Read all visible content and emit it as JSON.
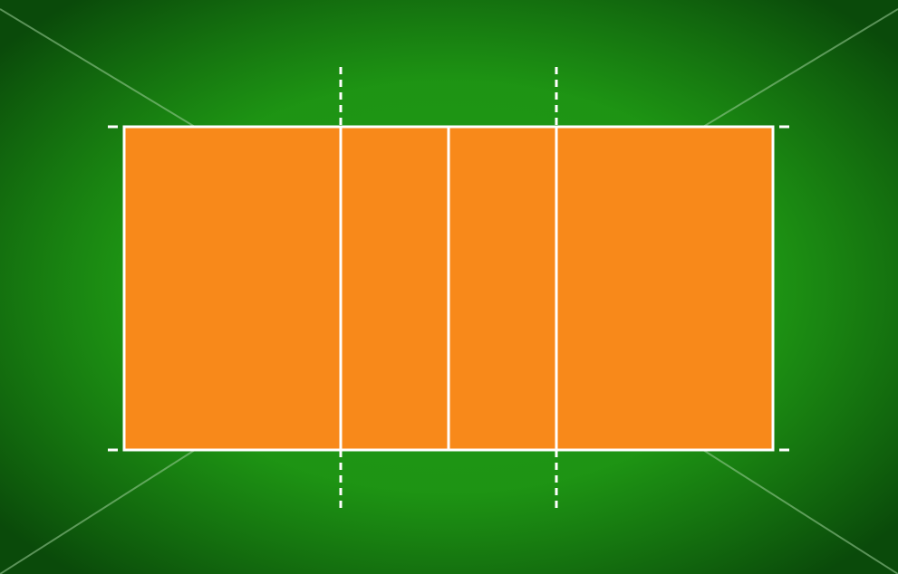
{
  "colors": {
    "surround_center": "#1f9a14",
    "surround_edge": "#0a4a0a",
    "court_fill": "#f8891a",
    "line": "#ffffff",
    "perspective_line": "#9fcf9a"
  },
  "icons": {
    "court": "volleyball-court-icon"
  },
  "court": {
    "zones": 4,
    "net_position_fraction": 0.5,
    "attack_line_fractions": [
      0.333,
      0.667
    ],
    "dashed_extension_lines": 2,
    "post_markers": 4
  }
}
